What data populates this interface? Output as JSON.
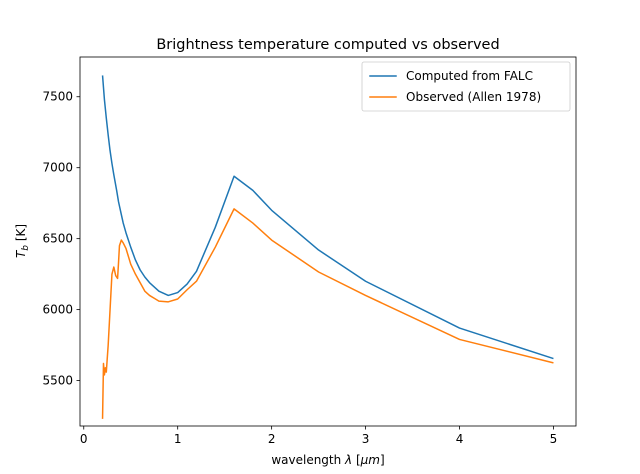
{
  "chart_data": {
    "type": "line",
    "title": "Brightness temperature computed vs observed",
    "xlabel_prefix": "wavelength ",
    "xlabel_lambda": "λ",
    "xlabel_unit_open": " [",
    "xlabel_unit": "μm",
    "xlabel_unit_close": "]",
    "ylabel_main": "T",
    "ylabel_sub": "b",
    "ylabel_unit": " [K]",
    "xlim": [
      -0.04,
      5.24
    ],
    "ylim": [
      5180,
      7780
    ],
    "xticks": [
      0,
      1,
      2,
      3,
      4,
      5
    ],
    "yticks": [
      5500,
      6000,
      6500,
      7000,
      7500
    ],
    "legend_position": "upper right",
    "grid": false,
    "series": [
      {
        "name": "Computed from FALC",
        "color": "#1f77b4",
        "x": [
          0.2,
          0.22,
          0.24,
          0.26,
          0.28,
          0.3,
          0.32,
          0.35,
          0.37,
          0.38,
          0.4,
          0.41,
          0.42,
          0.45,
          0.5,
          0.55,
          0.6,
          0.65,
          0.7,
          0.75,
          0.8,
          0.9,
          1.0,
          1.1,
          1.2,
          1.4,
          1.6,
          1.8,
          2.0,
          2.5,
          3.0,
          4.0,
          5.0
        ],
        "y": [
          7650,
          7480,
          7350,
          7230,
          7120,
          7030,
          6950,
          6840,
          6760,
          6730,
          6670,
          6640,
          6610,
          6540,
          6440,
          6350,
          6280,
          6230,
          6190,
          6160,
          6130,
          6100,
          6120,
          6180,
          6270,
          6580,
          6940,
          6840,
          6700,
          6420,
          6200,
          5870,
          5655
        ]
      },
      {
        "name": "Observed (Allen 1978)",
        "color": "#ff7f0e",
        "x": [
          0.2,
          0.21,
          0.22,
          0.23,
          0.24,
          0.26,
          0.28,
          0.3,
          0.32,
          0.34,
          0.36,
          0.37,
          0.38,
          0.4,
          0.41,
          0.42,
          0.45,
          0.5,
          0.55,
          0.6,
          0.65,
          0.7,
          0.75,
          0.8,
          0.9,
          1.0,
          1.1,
          1.2,
          1.4,
          1.6,
          1.8,
          2.0,
          2.5,
          3.0,
          4.0,
          5.0
        ],
        "y": [
          5230,
          5620,
          5540,
          5590,
          5560,
          5750,
          6000,
          6250,
          6300,
          6240,
          6220,
          6330,
          6450,
          6490,
          6480,
          6470,
          6430,
          6320,
          6250,
          6190,
          6130,
          6100,
          6080,
          6060,
          6055,
          6075,
          6140,
          6200,
          6440,
          6710,
          6610,
          6490,
          6265,
          6100,
          5790,
          5625
        ]
      }
    ]
  }
}
